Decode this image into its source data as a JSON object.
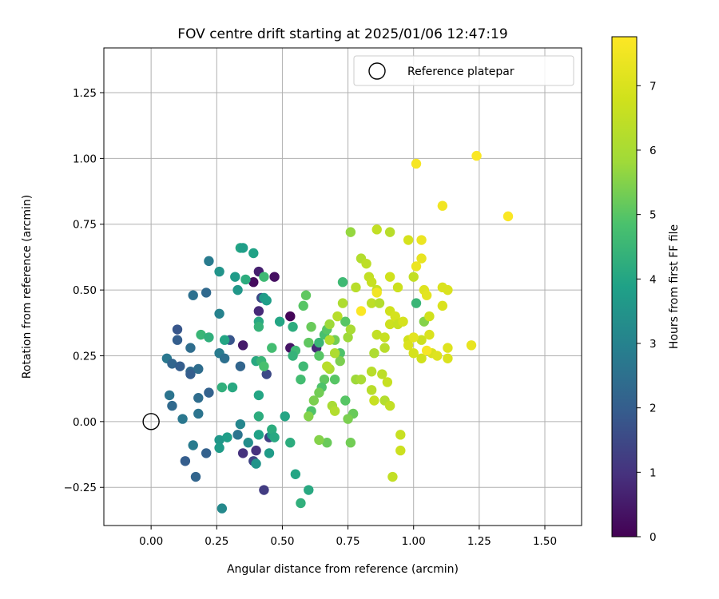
{
  "chart_data": {
    "type": "scatter",
    "title": "FOV centre drift starting at 2025/01/06 12:47:19",
    "xlabel": "Angular distance from reference (arcmin)",
    "ylabel": "Rotation from reference (arcmin)",
    "xlim": [
      -0.18,
      1.64
    ],
    "ylim": [
      -0.395,
      1.42
    ],
    "xticks": [
      "0.00",
      "0.25",
      "0.50",
      "0.75",
      "1.00",
      "1.25",
      "1.50"
    ],
    "xtick_values": [
      0,
      0.25,
      0.5,
      0.75,
      1.0,
      1.25,
      1.5
    ],
    "yticks": [
      "−0.25",
      "0.00",
      "0.25",
      "0.50",
      "0.75",
      "1.00",
      "1.25"
    ],
    "ytick_values": [
      -0.25,
      0,
      0.25,
      0.5,
      0.75,
      1.0,
      1.25
    ],
    "grid": true,
    "legend": {
      "label": "Reference platepar",
      "placement": "top-right",
      "marker": "open-circle"
    },
    "reference_point": {
      "x": 0.0,
      "y": 0.0,
      "label": "Reference platepar"
    },
    "colorbar": {
      "label": "Hours from first FF file",
      "colormap": "viridis",
      "range": [
        0,
        7.76
      ],
      "ticks": [
        "0",
        "1",
        "2",
        "3",
        "4",
        "5",
        "6",
        "7"
      ],
      "tick_values": [
        0,
        1,
        2,
        3,
        4,
        5,
        6,
        7
      ]
    },
    "points": [
      {
        "x": 0.39,
        "y": 0.53,
        "c": 0.2
      },
      {
        "x": 0.47,
        "y": 0.55,
        "c": 0.3
      },
      {
        "x": 0.41,
        "y": 0.57,
        "c": 0.6
      },
      {
        "x": 0.53,
        "y": 0.4,
        "c": 0.1
      },
      {
        "x": 0.41,
        "y": 0.42,
        "c": 0.8
      },
      {
        "x": 0.35,
        "y": 0.29,
        "c": 0.5
      },
      {
        "x": 0.53,
        "y": 0.28,
        "c": 0.4
      },
      {
        "x": 0.44,
        "y": 0.18,
        "c": 1.5
      },
      {
        "x": 0.4,
        "y": -0.11,
        "c": 1.0
      },
      {
        "x": 0.43,
        "y": -0.26,
        "c": 1.2
      },
      {
        "x": 0.35,
        "y": -0.12,
        "c": 1.0
      },
      {
        "x": 0.39,
        "y": -0.15,
        "c": 1.4
      },
      {
        "x": 0.45,
        "y": -0.06,
        "c": 1.3
      },
      {
        "x": 0.63,
        "y": 0.28,
        "c": 0.8
      },
      {
        "x": 0.42,
        "y": 0.47,
        "c": 1.5
      },
      {
        "x": 0.22,
        "y": 0.61,
        "c": 2.8
      },
      {
        "x": 0.26,
        "y": 0.57,
        "c": 3.5
      },
      {
        "x": 0.21,
        "y": 0.49,
        "c": 2.3
      },
      {
        "x": 0.16,
        "y": 0.48,
        "c": 2.5
      },
      {
        "x": 0.26,
        "y": 0.41,
        "c": 3.0
      },
      {
        "x": 0.1,
        "y": 0.35,
        "c": 1.8
      },
      {
        "x": 0.1,
        "y": 0.31,
        "c": 2.0
      },
      {
        "x": 0.15,
        "y": 0.28,
        "c": 2.4
      },
      {
        "x": 0.06,
        "y": 0.24,
        "c": 2.7
      },
      {
        "x": 0.08,
        "y": 0.22,
        "c": 2.2
      },
      {
        "x": 0.11,
        "y": 0.21,
        "c": 2.0
      },
      {
        "x": 0.15,
        "y": 0.19,
        "c": 2.3
      },
      {
        "x": 0.18,
        "y": 0.2,
        "c": 2.4
      },
      {
        "x": 0.15,
        "y": 0.18,
        "c": 2.0
      },
      {
        "x": 0.26,
        "y": 0.26,
        "c": 2.8
      },
      {
        "x": 0.28,
        "y": 0.24,
        "c": 2.5
      },
      {
        "x": 0.3,
        "y": 0.31,
        "c": 1.8
      },
      {
        "x": 0.34,
        "y": 0.21,
        "c": 2.2
      },
      {
        "x": 0.07,
        "y": 0.1,
        "c": 2.6
      },
      {
        "x": 0.08,
        "y": 0.06,
        "c": 2.3
      },
      {
        "x": 0.12,
        "y": 0.01,
        "c": 2.7
      },
      {
        "x": 0.18,
        "y": 0.09,
        "c": 2.4
      },
      {
        "x": 0.22,
        "y": 0.11,
        "c": 2.1
      },
      {
        "x": 0.18,
        "y": 0.03,
        "c": 2.6
      },
      {
        "x": 0.16,
        "y": -0.09,
        "c": 2.8
      },
      {
        "x": 0.21,
        "y": -0.12,
        "c": 2.1
      },
      {
        "x": 0.13,
        "y": -0.15,
        "c": 2.0
      },
      {
        "x": 0.17,
        "y": -0.21,
        "c": 2.2
      },
      {
        "x": 0.26,
        "y": -0.07,
        "c": 3.6
      },
      {
        "x": 0.26,
        "y": -0.1,
        "c": 3.7
      },
      {
        "x": 0.27,
        "y": -0.33,
        "c": 3.2
      },
      {
        "x": 0.29,
        "y": -0.06,
        "c": 3.8
      },
      {
        "x": 0.34,
        "y": -0.01,
        "c": 3.1
      },
      {
        "x": 0.33,
        "y": -0.05,
        "c": 2.6
      },
      {
        "x": 0.37,
        "y": -0.08,
        "c": 3.3
      },
      {
        "x": 0.4,
        "y": -0.16,
        "c": 3.5
      },
      {
        "x": 0.41,
        "y": -0.05,
        "c": 3.9
      },
      {
        "x": 0.46,
        "y": -0.05,
        "c": 3.6
      },
      {
        "x": 0.46,
        "y": -0.03,
        "c": 4.2
      },
      {
        "x": 0.45,
        "y": -0.12,
        "c": 3.7
      },
      {
        "x": 0.47,
        "y": -0.06,
        "c": 4.1
      },
      {
        "x": 0.53,
        "y": -0.08,
        "c": 4.2
      },
      {
        "x": 0.55,
        "y": -0.2,
        "c": 4.0
      },
      {
        "x": 0.57,
        "y": -0.31,
        "c": 4.3
      },
      {
        "x": 0.6,
        "y": -0.26,
        "c": 4.1
      },
      {
        "x": 0.51,
        "y": 0.02,
        "c": 4.0
      },
      {
        "x": 0.41,
        "y": 0.02,
        "c": 4.2
      },
      {
        "x": 0.41,
        "y": 0.1,
        "c": 4.0
      },
      {
        "x": 0.27,
        "y": 0.13,
        "c": 4.3
      },
      {
        "x": 0.31,
        "y": 0.13,
        "c": 4.1
      },
      {
        "x": 0.34,
        "y": 0.66,
        "c": 4.0
      },
      {
        "x": 0.35,
        "y": 0.66,
        "c": 3.8
      },
      {
        "x": 0.39,
        "y": 0.64,
        "c": 3.9
      },
      {
        "x": 0.32,
        "y": 0.55,
        "c": 3.7
      },
      {
        "x": 0.33,
        "y": 0.5,
        "c": 3.6
      },
      {
        "x": 0.36,
        "y": 0.54,
        "c": 4.2
      },
      {
        "x": 0.43,
        "y": 0.55,
        "c": 4.6
      },
      {
        "x": 0.43,
        "y": 0.47,
        "c": 3.7
      },
      {
        "x": 0.44,
        "y": 0.46,
        "c": 3.8
      },
      {
        "x": 0.41,
        "y": 0.38,
        "c": 4.1
      },
      {
        "x": 0.41,
        "y": 0.36,
        "c": 4.4
      },
      {
        "x": 0.49,
        "y": 0.38,
        "c": 4.0
      },
      {
        "x": 0.54,
        "y": 0.36,
        "c": 4.2
      },
      {
        "x": 0.55,
        "y": 0.27,
        "c": 4.6
      },
      {
        "x": 0.54,
        "y": 0.25,
        "c": 4.4
      },
      {
        "x": 0.46,
        "y": 0.28,
        "c": 4.7
      },
      {
        "x": 0.4,
        "y": 0.23,
        "c": 4.1
      },
      {
        "x": 0.42,
        "y": 0.23,
        "c": 4.5
      },
      {
        "x": 0.43,
        "y": 0.21,
        "c": 4.8
      },
      {
        "x": 0.19,
        "y": 0.33,
        "c": 4.5
      },
      {
        "x": 0.22,
        "y": 0.32,
        "c": 4.3
      },
      {
        "x": 0.28,
        "y": 0.31,
        "c": 4.0
      },
      {
        "x": 0.59,
        "y": 0.48,
        "c": 5.1
      },
      {
        "x": 0.58,
        "y": 0.44,
        "c": 5.0
      },
      {
        "x": 0.61,
        "y": 0.36,
        "c": 5.2
      },
      {
        "x": 0.6,
        "y": 0.3,
        "c": 5.1
      },
      {
        "x": 0.64,
        "y": 0.3,
        "c": 4.5
      },
      {
        "x": 0.66,
        "y": 0.33,
        "c": 4.8
      },
      {
        "x": 0.67,
        "y": 0.35,
        "c": 5.0
      },
      {
        "x": 0.7,
        "y": 0.31,
        "c": 5.3
      },
      {
        "x": 0.73,
        "y": 0.53,
        "c": 4.6
      },
      {
        "x": 0.74,
        "y": 0.38,
        "c": 5.0
      },
      {
        "x": 0.72,
        "y": 0.26,
        "c": 4.9
      },
      {
        "x": 0.64,
        "y": 0.25,
        "c": 5.0
      },
      {
        "x": 0.66,
        "y": 0.16,
        "c": 5.1
      },
      {
        "x": 0.65,
        "y": 0.13,
        "c": 4.9
      },
      {
        "x": 0.64,
        "y": 0.11,
        "c": 5.3
      },
      {
        "x": 0.62,
        "y": 0.08,
        "c": 5.4
      },
      {
        "x": 0.61,
        "y": 0.04,
        "c": 4.9
      },
      {
        "x": 0.6,
        "y": 0.02,
        "c": 5.5
      },
      {
        "x": 0.7,
        "y": 0.16,
        "c": 5.0
      },
      {
        "x": 0.72,
        "y": 0.23,
        "c": 5.4
      },
      {
        "x": 0.57,
        "y": 0.16,
        "c": 4.7
      },
      {
        "x": 0.58,
        "y": 0.21,
        "c": 4.6
      },
      {
        "x": 0.75,
        "y": 0.32,
        "c": 5.8
      },
      {
        "x": 0.74,
        "y": 0.08,
        "c": 5.0
      },
      {
        "x": 0.77,
        "y": 0.03,
        "c": 5.2
      },
      {
        "x": 0.75,
        "y": 0.01,
        "c": 5.4
      },
      {
        "x": 0.76,
        "y": -0.08,
        "c": 5.3
      },
      {
        "x": 0.67,
        "y": -0.08,
        "c": 5.2
      },
      {
        "x": 0.64,
        "y": -0.07,
        "c": 5.5
      },
      {
        "x": 0.76,
        "y": 0.72,
        "c": 5.7
      },
      {
        "x": 0.78,
        "y": 0.16,
        "c": 5.8
      },
      {
        "x": 0.68,
        "y": 0.37,
        "c": 5.8
      },
      {
        "x": 0.68,
        "y": 0.31,
        "c": 6.2
      },
      {
        "x": 0.68,
        "y": 0.2,
        "c": 6.0
      },
      {
        "x": 0.67,
        "y": 0.21,
        "c": 6.3
      },
      {
        "x": 0.69,
        "y": 0.06,
        "c": 6.0
      },
      {
        "x": 0.7,
        "y": 0.04,
        "c": 6.2
      },
      {
        "x": 0.7,
        "y": 0.26,
        "c": 6.1
      },
      {
        "x": 0.71,
        "y": 0.4,
        "c": 6.3
      },
      {
        "x": 0.73,
        "y": 0.45,
        "c": 6.1
      },
      {
        "x": 0.76,
        "y": 0.35,
        "c": 6.0
      },
      {
        "x": 0.78,
        "y": 0.51,
        "c": 6.3
      },
      {
        "x": 0.8,
        "y": 0.62,
        "c": 6.2
      },
      {
        "x": 0.82,
        "y": 0.6,
        "c": 6.4
      },
      {
        "x": 0.83,
        "y": 0.55,
        "c": 6.5
      },
      {
        "x": 0.86,
        "y": 0.73,
        "c": 6.5
      },
      {
        "x": 0.91,
        "y": 0.72,
        "c": 6.3
      },
      {
        "x": 0.84,
        "y": 0.53,
        "c": 6.6
      },
      {
        "x": 0.86,
        "y": 0.5,
        "c": 6.6
      },
      {
        "x": 0.84,
        "y": 0.45,
        "c": 6.4
      },
      {
        "x": 0.87,
        "y": 0.45,
        "c": 6.2
      },
      {
        "x": 0.8,
        "y": 0.16,
        "c": 6.0
      },
      {
        "x": 0.84,
        "y": 0.19,
        "c": 6.3
      },
      {
        "x": 0.85,
        "y": 0.26,
        "c": 6.1
      },
      {
        "x": 0.86,
        "y": 0.33,
        "c": 6.5
      },
      {
        "x": 0.89,
        "y": 0.28,
        "c": 6.3
      },
      {
        "x": 0.89,
        "y": 0.32,
        "c": 6.6
      },
      {
        "x": 0.91,
        "y": 0.37,
        "c": 6.7
      },
      {
        "x": 0.88,
        "y": 0.18,
        "c": 6.4
      },
      {
        "x": 0.9,
        "y": 0.15,
        "c": 6.6
      },
      {
        "x": 0.84,
        "y": 0.12,
        "c": 6.3
      },
      {
        "x": 0.89,
        "y": 0.08,
        "c": 6.2
      },
      {
        "x": 0.91,
        "y": 0.06,
        "c": 6.5
      },
      {
        "x": 0.85,
        "y": 0.08,
        "c": 6.6
      },
      {
        "x": 0.92,
        "y": -0.21,
        "c": 6.5
      },
      {
        "x": 0.95,
        "y": -0.05,
        "c": 6.6
      },
      {
        "x": 0.95,
        "y": -0.11,
        "c": 6.7
      },
      {
        "x": 0.91,
        "y": 0.55,
        "c": 6.8
      },
      {
        "x": 0.94,
        "y": 0.51,
        "c": 6.7
      },
      {
        "x": 0.91,
        "y": 0.42,
        "c": 6.8
      },
      {
        "x": 0.93,
        "y": 0.4,
        "c": 6.9
      },
      {
        "x": 0.94,
        "y": 0.37,
        "c": 6.6
      },
      {
        "x": 0.96,
        "y": 0.38,
        "c": 6.9
      },
      {
        "x": 0.98,
        "y": 0.69,
        "c": 6.9
      },
      {
        "x": 1.0,
        "y": 0.55,
        "c": 6.5
      },
      {
        "x": 1.01,
        "y": 0.45,
        "c": 4.5
      },
      {
        "x": 1.04,
        "y": 0.38,
        "c": 5.5
      },
      {
        "x": 1.03,
        "y": 0.31,
        "c": 6.7
      },
      {
        "x": 0.98,
        "y": 0.31,
        "c": 6.8
      },
      {
        "x": 0.98,
        "y": 0.29,
        "c": 7.0
      },
      {
        "x": 1.0,
        "y": 0.26,
        "c": 6.9
      },
      {
        "x": 1.03,
        "y": 0.24,
        "c": 6.8
      },
      {
        "x": 1.04,
        "y": 0.5,
        "c": 7.1
      },
      {
        "x": 1.05,
        "y": 0.48,
        "c": 7.2
      },
      {
        "x": 1.06,
        "y": 0.4,
        "c": 6.8
      },
      {
        "x": 1.06,
        "y": 0.33,
        "c": 7.0
      },
      {
        "x": 1.07,
        "y": 0.26,
        "c": 7.0
      },
      {
        "x": 1.05,
        "y": 0.27,
        "c": 7.6
      },
      {
        "x": 1.09,
        "y": 0.25,
        "c": 7.1
      },
      {
        "x": 1.11,
        "y": 0.51,
        "c": 7.0
      },
      {
        "x": 1.13,
        "y": 0.5,
        "c": 7.0
      },
      {
        "x": 1.11,
        "y": 0.44,
        "c": 7.0
      },
      {
        "x": 1.13,
        "y": 0.28,
        "c": 7.1
      },
      {
        "x": 1.13,
        "y": 0.24,
        "c": 7.0
      },
      {
        "x": 1.22,
        "y": 0.29,
        "c": 7.3
      },
      {
        "x": 1.03,
        "y": 0.62,
        "c": 7.3
      },
      {
        "x": 1.01,
        "y": 0.59,
        "c": 7.4
      },
      {
        "x": 1.03,
        "y": 0.69,
        "c": 7.4
      },
      {
        "x": 1.0,
        "y": 0.32,
        "c": 7.2
      },
      {
        "x": 0.86,
        "y": 0.49,
        "c": 7.5
      },
      {
        "x": 0.8,
        "y": 0.42,
        "c": 7.7
      },
      {
        "x": 1.01,
        "y": 0.98,
        "c": 7.6
      },
      {
        "x": 1.11,
        "y": 0.82,
        "c": 7.5
      },
      {
        "x": 1.24,
        "y": 1.01,
        "c": 7.7
      },
      {
        "x": 1.36,
        "y": 0.78,
        "c": 7.7
      }
    ]
  }
}
